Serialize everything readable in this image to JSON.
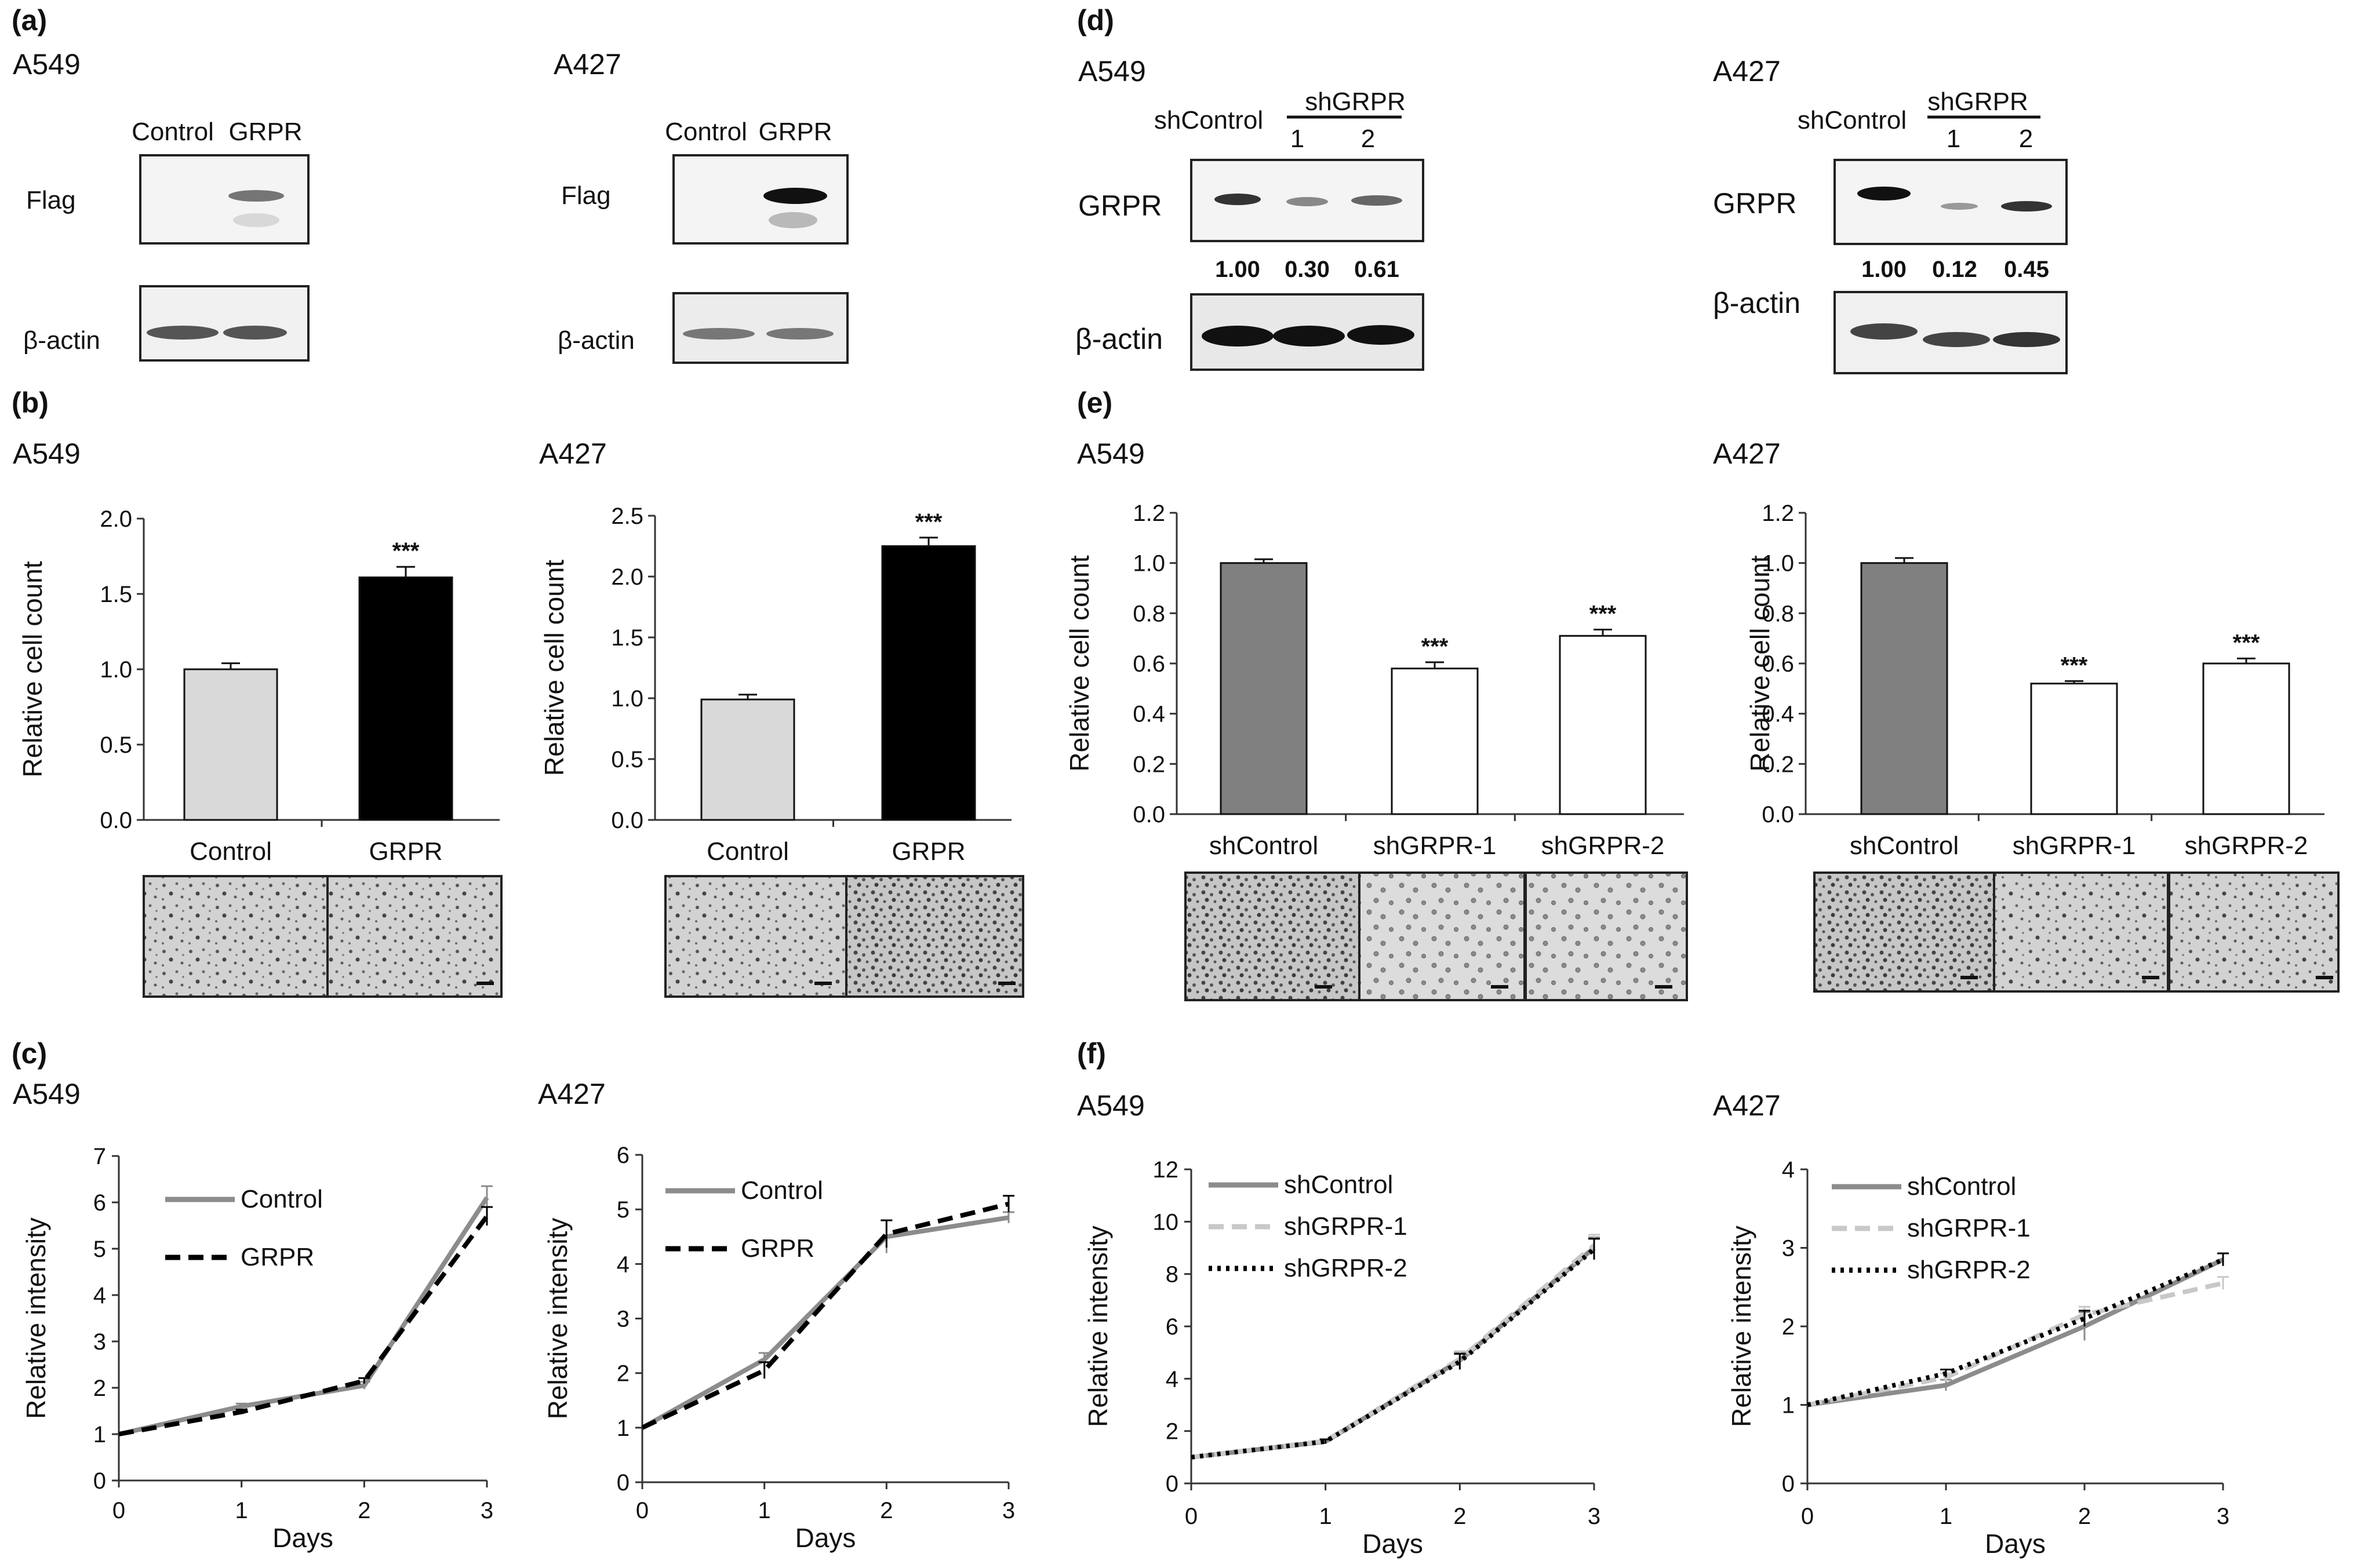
{
  "panels": {
    "a": {
      "letter": "(a)",
      "blots": [
        {
          "cell": "A549",
          "lanes": [
            "Control",
            "GRPR"
          ],
          "rows": [
            "Flag",
            "β-actin"
          ]
        },
        {
          "cell": "A427",
          "lanes": [
            "Control",
            "GRPR"
          ],
          "rows": [
            "Flag",
            "β-actin"
          ]
        }
      ]
    },
    "d": {
      "letter": "(d)",
      "blots": [
        {
          "cell": "A549",
          "control": "shControl",
          "group": "shGRPR",
          "lanes": [
            "1",
            "2"
          ],
          "rows": [
            "GRPR",
            "β-actin"
          ],
          "quant": [
            "1.00",
            "0.30",
            "0.61"
          ]
        },
        {
          "cell": "A427",
          "control": "shControl",
          "group": "shGRPR",
          "lanes": [
            "1",
            "2"
          ],
          "rows": [
            "GRPR",
            "β-actin"
          ],
          "quant": [
            "1.00",
            "0.12",
            "0.45"
          ]
        }
      ]
    },
    "b": {
      "letter": "(b)"
    },
    "e": {
      "letter": "(e)"
    },
    "c": {
      "letter": "(c)"
    },
    "f": {
      "letter": "(f)"
    }
  },
  "colors": {
    "light_bar": "#d9d9d9",
    "black_bar": "#000000",
    "gray_bar": "#808080",
    "white_bar": "#ffffff",
    "gray_line": "#8c8c8c",
    "light_line": "#c8c8c8",
    "black_line": "#000000"
  },
  "chart_data": [
    {
      "id": "b1",
      "panel": "b",
      "type": "bar",
      "title": "A549",
      "ylabel": "Relative cell count",
      "xlabel": "",
      "ylim": [
        0,
        2.0
      ],
      "yticks": [
        "0.0",
        "0.5",
        "1.0",
        "1.5",
        "2.0"
      ],
      "categories": [
        "Control",
        "GRPR"
      ],
      "values": [
        1.0,
        1.61
      ],
      "errors": [
        0.04,
        0.07
      ],
      "bar_colors": [
        "#d9d9d9",
        "#000000"
      ],
      "significance": [
        "",
        "***"
      ]
    },
    {
      "id": "b2",
      "panel": "b",
      "type": "bar",
      "title": "A427",
      "ylabel": "Relative cell count",
      "xlabel": "",
      "ylim": [
        0,
        2.5
      ],
      "yticks": [
        "0.0",
        "0.5",
        "1.0",
        "1.5",
        "2.0",
        "2.5"
      ],
      "categories": [
        "Control",
        "GRPR"
      ],
      "values": [
        0.99,
        2.25
      ],
      "errors": [
        0.04,
        0.07
      ],
      "bar_colors": [
        "#d9d9d9",
        "#000000"
      ],
      "significance": [
        "",
        "***"
      ]
    },
    {
      "id": "e1",
      "panel": "e",
      "type": "bar",
      "title": "A549",
      "ylabel": "Relative cell count",
      "xlabel": "",
      "ylim": [
        0,
        1.2
      ],
      "yticks": [
        "0.0",
        "0.2",
        "0.4",
        "0.6",
        "0.8",
        "1.0",
        "1.2"
      ],
      "categories": [
        "shControl",
        "shGRPR-1",
        "shGRPR-2"
      ],
      "values": [
        1.0,
        0.58,
        0.71
      ],
      "errors": [
        0.015,
        0.025,
        0.025
      ],
      "bar_colors": [
        "#808080",
        "#ffffff",
        "#ffffff"
      ],
      "significance": [
        "",
        "***",
        "***"
      ]
    },
    {
      "id": "e2",
      "panel": "e",
      "type": "bar",
      "title": "A427",
      "ylabel": "Relative cell count",
      "xlabel": "",
      "ylim": [
        0,
        1.2
      ],
      "yticks": [
        "0.0",
        "0.2",
        "0.4",
        "0.6",
        "0.8",
        "1.0",
        "1.2"
      ],
      "categories": [
        "shControl",
        "shGRPR-1",
        "shGRPR-2"
      ],
      "values": [
        1.0,
        0.52,
        0.6
      ],
      "errors": [
        0.02,
        0.01,
        0.02
      ],
      "bar_colors": [
        "#808080",
        "#ffffff",
        "#ffffff"
      ],
      "significance": [
        "",
        "***",
        "***"
      ]
    },
    {
      "id": "c1",
      "panel": "c",
      "type": "line",
      "title": "A549",
      "xlabel": "Days",
      "ylabel": "Relative intensity",
      "x": [
        0,
        1,
        2,
        3
      ],
      "xticks": [
        "0",
        "1",
        "2",
        "3"
      ],
      "ylim": [
        0,
        7
      ],
      "yticks": [
        "0",
        "1",
        "2",
        "3",
        "4",
        "5",
        "6",
        "7"
      ],
      "legend_position": "top-left",
      "series": [
        {
          "name": "Control",
          "values": [
            1.0,
            1.6,
            2.05,
            6.1
          ],
          "errors": [
            0.05,
            0.06,
            0.08,
            0.25
          ],
          "color": "#8c8c8c",
          "dash": "solid"
        },
        {
          "name": "GRPR",
          "values": [
            1.0,
            1.48,
            2.15,
            5.7
          ],
          "errors": [
            0.04,
            0.05,
            0.06,
            0.2
          ],
          "color": "#000000",
          "dash": "dashed"
        }
      ]
    },
    {
      "id": "c2",
      "panel": "c",
      "type": "line",
      "title": "A427",
      "xlabel": "Days",
      "ylabel": "Relative intensity",
      "x": [
        0,
        1,
        2,
        3
      ],
      "xticks": [
        "0",
        "1",
        "2",
        "3"
      ],
      "ylim": [
        0,
        6
      ],
      "yticks": [
        "0",
        "1",
        "2",
        "3",
        "4",
        "5",
        "6"
      ],
      "legend_position": "top-left",
      "series": [
        {
          "name": "Control",
          "values": [
            1.0,
            2.25,
            4.5,
            4.85
          ],
          "errors": [
            0.05,
            0.12,
            0.3,
            0.1
          ],
          "color": "#8c8c8c",
          "dash": "solid"
        },
        {
          "name": "GRPR",
          "values": [
            1.0,
            2.05,
            4.55,
            5.1
          ],
          "errors": [
            0.05,
            0.15,
            0.25,
            0.15
          ],
          "color": "#000000",
          "dash": "dashed"
        }
      ]
    },
    {
      "id": "f1",
      "panel": "f",
      "type": "line",
      "title": "A549",
      "xlabel": "Days",
      "ylabel": "Relative intensity",
      "x": [
        0,
        1,
        2,
        3
      ],
      "xticks": [
        "0",
        "1",
        "2",
        "3"
      ],
      "ylim": [
        0,
        12
      ],
      "yticks": [
        "0",
        "2",
        "4",
        "6",
        "8",
        "10",
        "12"
      ],
      "legend_position": "top-left",
      "series": [
        {
          "name": "shControl",
          "values": [
            1.0,
            1.6,
            4.7,
            9.0
          ],
          "errors": [
            0.05,
            0.08,
            0.3,
            0.4
          ],
          "color": "#8c8c8c",
          "dash": "solid"
        },
        {
          "name": "shGRPR-1",
          "values": [
            1.0,
            1.62,
            4.75,
            9.1
          ],
          "errors": [
            0.05,
            0.08,
            0.3,
            0.4
          ],
          "color": "#c8c8c8",
          "dash": "dashed"
        },
        {
          "name": "shGRPR-2",
          "values": [
            1.0,
            1.6,
            4.65,
            8.95
          ],
          "errors": [
            0.05,
            0.08,
            0.3,
            0.4
          ],
          "color": "#000000",
          "dash": "dotted"
        }
      ]
    },
    {
      "id": "f2",
      "panel": "f",
      "type": "line",
      "title": "A427",
      "xlabel": "Days",
      "ylabel": "Relative intensity",
      "x": [
        0,
        1,
        2,
        3
      ],
      "xticks": [
        "0",
        "1",
        "2",
        "3"
      ],
      "ylim": [
        0,
        4
      ],
      "yticks": [
        "0",
        "1",
        "2",
        "3",
        "4"
      ],
      "legend_position": "top-left",
      "series": [
        {
          "name": "shControl",
          "values": [
            1.0,
            1.25,
            2.0,
            2.85
          ],
          "errors": [
            0.03,
            0.07,
            0.18,
            0.08
          ],
          "color": "#8c8c8c",
          "dash": "solid"
        },
        {
          "name": "shGRPR-1",
          "values": [
            1.0,
            1.35,
            2.15,
            2.55
          ],
          "errors": [
            0.03,
            0.05,
            0.1,
            0.08
          ],
          "color": "#c8c8c8",
          "dash": "dashed"
        },
        {
          "name": "shGRPR-2",
          "values": [
            1.0,
            1.4,
            2.1,
            2.85
          ],
          "errors": [
            0.03,
            0.05,
            0.1,
            0.08
          ],
          "color": "#000000",
          "dash": "dotted"
        }
      ]
    }
  ]
}
